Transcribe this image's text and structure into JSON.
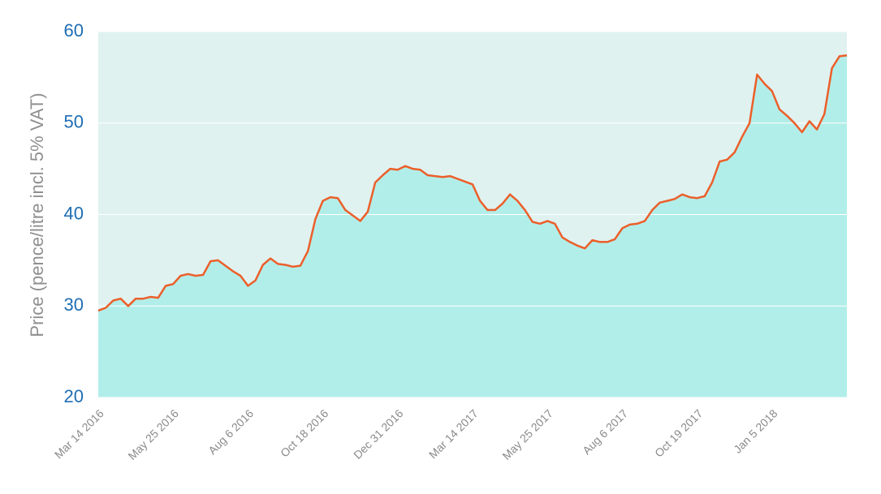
{
  "chart_data": {
    "type": "area",
    "y_label": "Price (pence/litre incl. 5% VAT)",
    "categories": [
      "Mar 14 2016",
      null,
      null,
      null,
      null,
      null,
      null,
      null,
      null,
      null,
      "May 25 2016",
      null,
      null,
      null,
      null,
      null,
      null,
      null,
      null,
      null,
      "Aug 6 2016",
      null,
      null,
      null,
      null,
      null,
      null,
      null,
      null,
      null,
      "Oct 18 2016",
      null,
      null,
      null,
      null,
      null,
      null,
      null,
      null,
      null,
      "Dec 31 2016",
      null,
      null,
      null,
      null,
      null,
      null,
      null,
      null,
      null,
      "Mar 14 2017",
      null,
      null,
      null,
      null,
      null,
      null,
      null,
      null,
      null,
      "May 25 2017",
      null,
      null,
      null,
      null,
      null,
      null,
      null,
      null,
      null,
      "Aug 6 2017",
      null,
      null,
      null,
      null,
      null,
      null,
      null,
      null,
      null,
      "Oct 19 2017",
      null,
      null,
      null,
      null,
      null,
      null,
      null,
      null,
      null,
      "Jan 5 2018",
      null,
      null,
      null,
      null,
      null,
      null,
      null,
      null,
      null,
      null
    ],
    "values": [
      29.5,
      29.8,
      30.6,
      30.8,
      30.0,
      30.8,
      30.8,
      31.0,
      30.9,
      32.2,
      32.4,
      33.3,
      33.5,
      33.3,
      33.4,
      34.9,
      35.0,
      34.4,
      33.8,
      33.3,
      32.2,
      32.8,
      34.5,
      35.2,
      34.6,
      34.5,
      34.3,
      34.4,
      36.0,
      39.5,
      41.5,
      41.9,
      41.8,
      40.5,
      39.9,
      39.3,
      40.3,
      43.5,
      44.3,
      45.0,
      44.9,
      45.3,
      45.0,
      44.9,
      44.3,
      44.2,
      44.1,
      44.2,
      43.9,
      43.6,
      43.3,
      41.5,
      40.5,
      40.5,
      41.2,
      42.2,
      41.5,
      40.5,
      39.2,
      39.0,
      39.3,
      39.0,
      37.5,
      37.0,
      36.6,
      36.3,
      37.2,
      37.0,
      37.0,
      37.3,
      38.5,
      38.9,
      39.0,
      39.3,
      40.5,
      41.3,
      41.5,
      41.7,
      42.2,
      41.9,
      41.8,
      42.0,
      43.5,
      45.8,
      46.0,
      46.8,
      48.5,
      50.0,
      55.3,
      54.3,
      53.5,
      51.5,
      50.8,
      50.0,
      49.0,
      50.2,
      49.3,
      51.0,
      56.0,
      57.3,
      57.4
    ],
    "color": "#ec5f2a",
    "fill_color": "#b2eee9",
    "background_color": "#dff2f0",
    "ylim": [
      20,
      60
    ],
    "yticks": [
      20,
      30,
      40,
      50,
      60
    ],
    "grid": true
  }
}
